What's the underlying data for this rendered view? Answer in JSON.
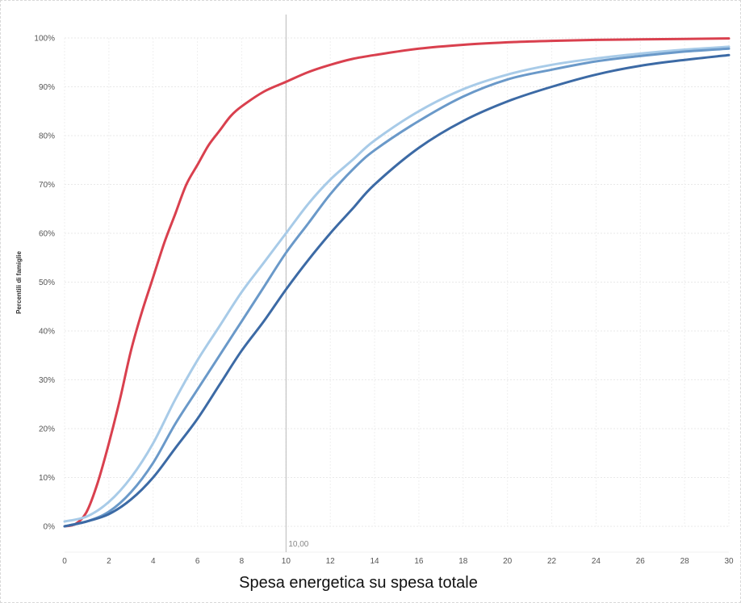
{
  "chart_data": {
    "type": "line",
    "title": "",
    "xlabel": "Spesa energetica su spesa totale",
    "ylabel": "Percentili di famiglie",
    "xlim": [
      0,
      30
    ],
    "ylim": [
      0,
      100
    ],
    "xticks": [
      "0",
      "2",
      "4",
      "6",
      "8",
      "10",
      "12",
      "14",
      "16",
      "18",
      "20",
      "22",
      "24",
      "26",
      "28",
      "30"
    ],
    "yticks": [
      "0%",
      "10%",
      "20%",
      "30%",
      "40%",
      "50%",
      "60%",
      "70%",
      "80%",
      "90%",
      "100%"
    ],
    "grid": true,
    "reference_line": {
      "x": 10,
      "label": "10,00"
    },
    "series": [
      {
        "color": "#d9404e",
        "x": [
          0,
          0.5,
          1,
          1.5,
          2,
          2.5,
          3,
          3.5,
          4,
          4.5,
          5,
          5.5,
          6,
          6.5,
          7,
          7.5,
          8,
          9,
          10,
          11,
          12,
          13,
          14,
          16,
          18,
          20,
          22,
          24,
          26,
          28,
          30
        ],
        "y": [
          0,
          0.5,
          3,
          9,
          17,
          26,
          36,
          44,
          51,
          58,
          64,
          70,
          74,
          78,
          81,
          84,
          86,
          89,
          91,
          93,
          94.5,
          95.7,
          96.5,
          97.8,
          98.6,
          99.1,
          99.4,
          99.6,
          99.7,
          99.8,
          99.9
        ]
      },
      {
        "color": "#a8cbe8",
        "x": [
          0,
          1,
          2,
          3,
          4,
          5,
          6,
          7,
          8,
          9,
          10,
          11,
          12,
          13,
          14,
          16,
          18,
          20,
          22,
          24,
          26,
          28,
          30
        ],
        "y": [
          1,
          2,
          5,
          10,
          17,
          26,
          34,
          41,
          48,
          54,
          60,
          66,
          71,
          75,
          79,
          85,
          89.5,
          92.5,
          94.5,
          95.8,
          96.8,
          97.6,
          98.2
        ]
      },
      {
        "color": "#6a99c9",
        "x": [
          0,
          1,
          2,
          3,
          4,
          5,
          6,
          7,
          8,
          9,
          10,
          11,
          12,
          13,
          14,
          16,
          18,
          20,
          22,
          24,
          26,
          28,
          30
        ],
        "y": [
          0,
          1,
          3,
          7,
          13,
          21,
          28,
          35,
          42,
          49,
          56,
          62,
          68,
          73,
          77,
          83,
          88,
          91.5,
          93.5,
          95.2,
          96.3,
          97.2,
          97.8
        ]
      },
      {
        "color": "#3c6aa5",
        "x": [
          0,
          1,
          2,
          3,
          4,
          5,
          6,
          7,
          8,
          9,
          10,
          11,
          12,
          13,
          14,
          16,
          18,
          20,
          22,
          24,
          26,
          28,
          30
        ],
        "y": [
          0,
          1,
          2.5,
          5.5,
          10,
          16,
          22,
          29,
          36,
          42,
          48.5,
          54.5,
          60,
          65,
          70,
          77.5,
          83,
          87,
          90,
          92.5,
          94.3,
          95.5,
          96.5
        ]
      }
    ]
  }
}
